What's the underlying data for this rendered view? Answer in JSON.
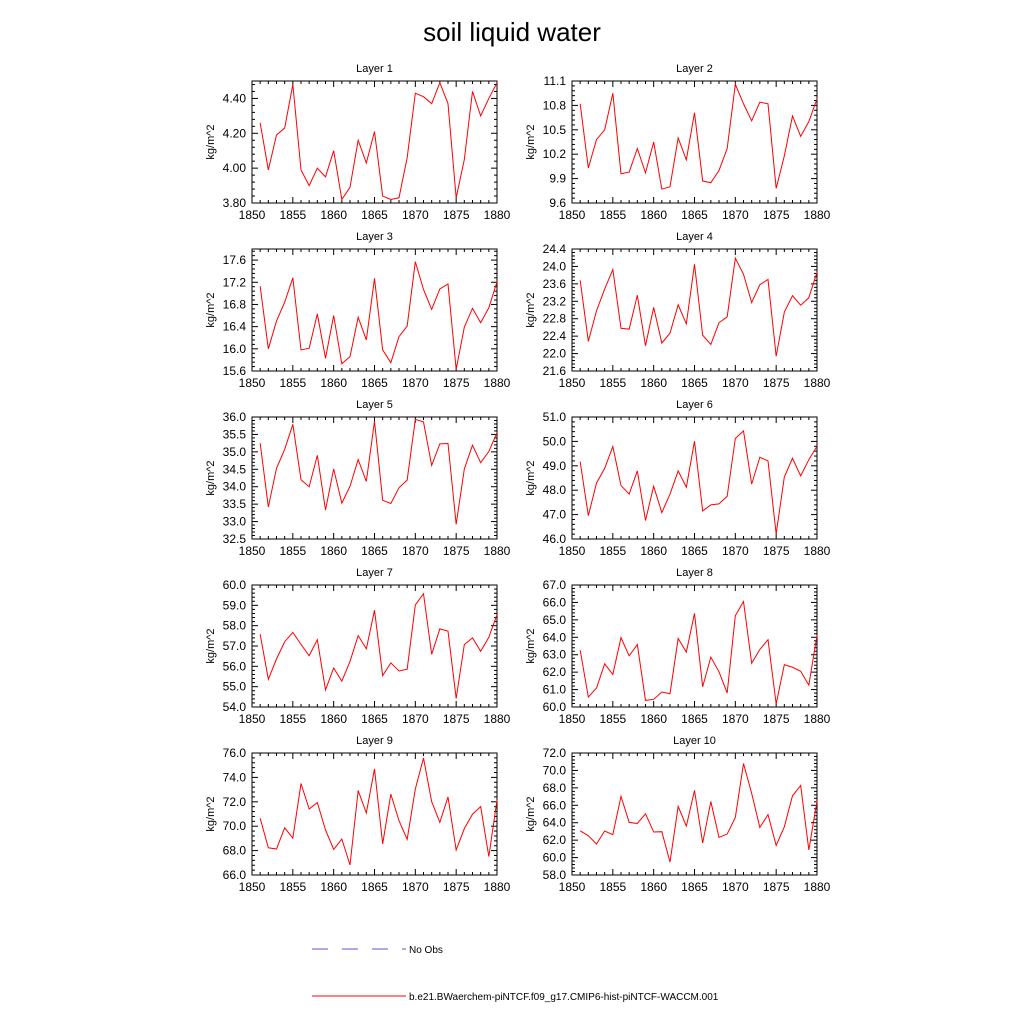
{
  "figure": {
    "title": "soil liquid water"
  },
  "legend": {
    "obs_label": "No Obs",
    "model_label": "b.e21.BWaerchem-piNTCF.f09_g17.CMIP6-hist-piNTCF-WACCM.001",
    "obs_color": "#5a5ad0",
    "model_color": "#ff0000"
  },
  "chart_data": [
    {
      "type": "line",
      "title": "Layer 1",
      "ylabel": "kg/m^2",
      "xlabel": "",
      "xlim": [
        1850,
        1880
      ],
      "ylim": [
        3.8,
        4.5
      ],
      "xticks": [
        "1850",
        "1855",
        "1860",
        "1865",
        "1870",
        "1875",
        "1880"
      ],
      "yticks": [
        "3.80",
        "4.00",
        "4.20",
        "4.40"
      ],
      "series": [
        {
          "color": "#ff0000",
          "x": [
            1851,
            1852,
            1853,
            1854,
            1855,
            1856,
            1857,
            1858,
            1859,
            1860,
            1861,
            1862,
            1863,
            1864,
            1865,
            1866,
            1867,
            1868,
            1869,
            1870,
            1871,
            1872,
            1873,
            1874,
            1875,
            1876,
            1877,
            1878,
            1879,
            1880
          ],
          "y": [
            4.26,
            3.99,
            4.19,
            4.23,
            4.48,
            3.99,
            3.9,
            4.0,
            3.95,
            4.1,
            3.82,
            3.89,
            4.16,
            4.03,
            4.21,
            3.84,
            3.82,
            3.83,
            4.06,
            4.43,
            4.41,
            4.37,
            4.49,
            4.37,
            3.83,
            4.05,
            4.44,
            4.3,
            4.4,
            4.49
          ]
        }
      ]
    },
    {
      "type": "line",
      "title": "Layer 2",
      "ylabel": "kg/m^2",
      "xlabel": "",
      "xlim": [
        1850,
        1880
      ],
      "ylim": [
        9.6,
        11.1
      ],
      "xticks": [
        "1850",
        "1855",
        "1860",
        "1865",
        "1870",
        "1875",
        "1880"
      ],
      "yticks": [
        "9.6",
        "9.9",
        "10.2",
        "10.5",
        "10.8",
        "11.1"
      ],
      "series": [
        {
          "color": "#ff0000",
          "x": [
            1851,
            1852,
            1853,
            1854,
            1855,
            1856,
            1857,
            1858,
            1859,
            1860,
            1861,
            1862,
            1863,
            1864,
            1865,
            1866,
            1867,
            1868,
            1869,
            1870,
            1871,
            1872,
            1873,
            1874,
            1875,
            1876,
            1877,
            1878,
            1879,
            1880
          ],
          "y": [
            10.82,
            10.03,
            10.38,
            10.5,
            10.95,
            9.96,
            9.98,
            10.27,
            9.97,
            10.35,
            9.77,
            9.8,
            10.4,
            10.13,
            10.71,
            9.87,
            9.85,
            10.0,
            10.27,
            11.06,
            10.82,
            10.61,
            10.84,
            10.82,
            9.78,
            10.18,
            10.67,
            10.42,
            10.6,
            10.88
          ]
        }
      ]
    },
    {
      "type": "line",
      "title": "Layer 3",
      "ylabel": "kg/m^2",
      "xlabel": "",
      "xlim": [
        1850,
        1880
      ],
      "ylim": [
        15.6,
        17.8
      ],
      "xticks": [
        "1850",
        "1855",
        "1860",
        "1865",
        "1870",
        "1875",
        "1880"
      ],
      "yticks": [
        "15.6",
        "16.0",
        "16.4",
        "16.8",
        "17.2",
        "17.6"
      ],
      "series": [
        {
          "color": "#ff0000",
          "x": [
            1851,
            1852,
            1853,
            1854,
            1855,
            1856,
            1857,
            1858,
            1859,
            1860,
            1861,
            1862,
            1863,
            1864,
            1865,
            1866,
            1867,
            1868,
            1869,
            1870,
            1871,
            1872,
            1873,
            1874,
            1875,
            1876,
            1877,
            1878,
            1879,
            1880
          ],
          "y": [
            17.13,
            16.0,
            16.5,
            16.84,
            17.28,
            15.98,
            16.01,
            16.63,
            15.83,
            16.6,
            15.73,
            15.86,
            16.57,
            16.16,
            17.27,
            15.98,
            15.75,
            16.22,
            16.41,
            17.57,
            17.07,
            16.71,
            17.08,
            17.17,
            15.63,
            16.39,
            16.73,
            16.47,
            16.74,
            17.21
          ]
        }
      ]
    },
    {
      "type": "line",
      "title": "Layer 4",
      "ylabel": "kg/m^2",
      "xlabel": "",
      "xlim": [
        1850,
        1880
      ],
      "ylim": [
        21.6,
        24.4
      ],
      "xticks": [
        "1850",
        "1855",
        "1860",
        "1865",
        "1870",
        "1875",
        "1880"
      ],
      "yticks": [
        "21.6",
        "22.0",
        "22.4",
        "22.8",
        "23.2",
        "23.6",
        "24.0",
        "24.4"
      ],
      "series": [
        {
          "color": "#ff0000",
          "x": [
            1851,
            1852,
            1853,
            1854,
            1855,
            1856,
            1857,
            1858,
            1859,
            1860,
            1861,
            1862,
            1863,
            1864,
            1865,
            1866,
            1867,
            1868,
            1869,
            1870,
            1871,
            1872,
            1873,
            1874,
            1875,
            1876,
            1877,
            1878,
            1879,
            1880
          ],
          "y": [
            23.68,
            22.28,
            22.98,
            23.48,
            23.93,
            22.58,
            22.56,
            23.34,
            22.18,
            23.06,
            22.24,
            22.47,
            23.12,
            22.68,
            24.05,
            22.42,
            22.21,
            22.71,
            22.84,
            24.19,
            23.82,
            23.17,
            23.58,
            23.7,
            21.94,
            22.95,
            23.33,
            23.11,
            23.28,
            23.87
          ]
        }
      ]
    },
    {
      "type": "line",
      "title": "Layer 5",
      "ylabel": "kg/m^2",
      "xlabel": "",
      "xlim": [
        1850,
        1880
      ],
      "ylim": [
        32.5,
        36.0
      ],
      "xticks": [
        "1850",
        "1855",
        "1860",
        "1865",
        "1870",
        "1875",
        "1880"
      ],
      "yticks": [
        "32.5",
        "33.0",
        "33.5",
        "34.0",
        "34.5",
        "35.0",
        "35.5",
        "36.0"
      ],
      "series": [
        {
          "color": "#ff0000",
          "x": [
            1851,
            1852,
            1853,
            1854,
            1855,
            1856,
            1857,
            1858,
            1859,
            1860,
            1861,
            1862,
            1863,
            1864,
            1865,
            1866,
            1867,
            1868,
            1869,
            1870,
            1871,
            1872,
            1873,
            1874,
            1875,
            1876,
            1877,
            1878,
            1879,
            1880
          ],
          "y": [
            35.25,
            33.42,
            34.53,
            35.07,
            35.79,
            34.2,
            34.0,
            34.9,
            33.33,
            34.51,
            33.53,
            34.01,
            34.78,
            34.15,
            35.88,
            33.61,
            33.52,
            33.97,
            34.19,
            35.93,
            35.86,
            34.61,
            35.23,
            35.24,
            32.92,
            34.51,
            35.19,
            34.69,
            35.01,
            35.55
          ]
        }
      ]
    },
    {
      "type": "line",
      "title": "Layer 6",
      "ylabel": "kg/m^2",
      "xlabel": "",
      "xlim": [
        1850,
        1880
      ],
      "ylim": [
        46.0,
        51.0
      ],
      "xticks": [
        "1850",
        "1855",
        "1860",
        "1865",
        "1870",
        "1875",
        "1880"
      ],
      "yticks": [
        "46.0",
        "47.0",
        "48.0",
        "49.0",
        "50.0",
        "51.0"
      ],
      "series": [
        {
          "color": "#ff0000",
          "x": [
            1851,
            1852,
            1853,
            1854,
            1855,
            1856,
            1857,
            1858,
            1859,
            1860,
            1861,
            1862,
            1863,
            1864,
            1865,
            1866,
            1867,
            1868,
            1869,
            1870,
            1871,
            1872,
            1873,
            1874,
            1875,
            1876,
            1877,
            1878,
            1879,
            1880
          ],
          "y": [
            49.17,
            46.96,
            48.29,
            48.9,
            49.79,
            48.19,
            47.84,
            48.79,
            46.76,
            48.16,
            47.08,
            47.84,
            48.79,
            48.12,
            50.01,
            47.15,
            47.4,
            47.44,
            47.75,
            50.12,
            50.43,
            48.25,
            49.35,
            49.2,
            46.21,
            48.54,
            49.31,
            48.59,
            49.25,
            49.8
          ]
        }
      ]
    },
    {
      "type": "line",
      "title": "Layer 7",
      "ylabel": "kg/m^2",
      "xlabel": "",
      "xlim": [
        1850,
        1880
      ],
      "ylim": [
        54.0,
        60.0
      ],
      "xticks": [
        "1850",
        "1855",
        "1860",
        "1865",
        "1870",
        "1875",
        "1880"
      ],
      "yticks": [
        "54.0",
        "55.0",
        "56.0",
        "57.0",
        "58.0",
        "59.0",
        "60.0"
      ],
      "series": [
        {
          "color": "#ff0000",
          "x": [
            1851,
            1852,
            1853,
            1854,
            1855,
            1856,
            1857,
            1858,
            1859,
            1860,
            1861,
            1862,
            1863,
            1864,
            1865,
            1866,
            1867,
            1868,
            1869,
            1870,
            1871,
            1872,
            1873,
            1874,
            1875,
            1876,
            1877,
            1878,
            1879,
            1880
          ],
          "y": [
            57.58,
            55.36,
            56.36,
            57.21,
            57.67,
            57.08,
            56.52,
            57.31,
            54.84,
            55.92,
            55.27,
            56.24,
            57.51,
            56.86,
            58.76,
            55.54,
            56.17,
            55.77,
            55.86,
            59.02,
            59.57,
            56.59,
            57.84,
            57.73,
            54.42,
            57.07,
            57.4,
            56.74,
            57.43,
            58.54
          ]
        }
      ]
    },
    {
      "type": "line",
      "title": "Layer 8",
      "ylabel": "kg/m^2",
      "xlabel": "",
      "xlim": [
        1850,
        1880
      ],
      "ylim": [
        60.0,
        67.0
      ],
      "xticks": [
        "1850",
        "1855",
        "1860",
        "1865",
        "1870",
        "1875",
        "1880"
      ],
      "yticks": [
        "60.0",
        "61.0",
        "62.0",
        "63.0",
        "64.0",
        "65.0",
        "66.0",
        "67.0"
      ],
      "series": [
        {
          "color": "#ff0000",
          "x": [
            1851,
            1852,
            1853,
            1854,
            1855,
            1856,
            1857,
            1858,
            1859,
            1860,
            1861,
            1862,
            1863,
            1864,
            1865,
            1866,
            1867,
            1868,
            1869,
            1870,
            1871,
            1872,
            1873,
            1874,
            1875,
            1876,
            1877,
            1878,
            1879,
            1880
          ],
          "y": [
            63.26,
            60.57,
            61.09,
            62.48,
            61.87,
            63.98,
            62.93,
            63.59,
            60.38,
            60.44,
            60.86,
            60.76,
            63.93,
            63.15,
            65.37,
            61.16,
            62.86,
            62.02,
            60.8,
            65.24,
            66.05,
            62.51,
            63.3,
            63.86,
            60.18,
            62.43,
            62.28,
            62.05,
            61.25,
            64.12
          ]
        }
      ]
    },
    {
      "type": "line",
      "title": "Layer 9",
      "ylabel": "kg/m^2",
      "xlabel": "",
      "xlim": [
        1850,
        1880
      ],
      "ylim": [
        66.0,
        76.0
      ],
      "xticks": [
        "1850",
        "1855",
        "1860",
        "1865",
        "1870",
        "1875",
        "1880"
      ],
      "yticks": [
        "66.0",
        "68.0",
        "70.0",
        "72.0",
        "74.0",
        "76.0"
      ],
      "series": [
        {
          "color": "#ff0000",
          "x": [
            1851,
            1852,
            1853,
            1854,
            1855,
            1856,
            1857,
            1858,
            1859,
            1860,
            1861,
            1862,
            1863,
            1864,
            1865,
            1866,
            1867,
            1868,
            1869,
            1870,
            1871,
            1872,
            1873,
            1874,
            1875,
            1876,
            1877,
            1878,
            1879,
            1880
          ],
          "y": [
            70.65,
            68.23,
            68.13,
            69.87,
            69.02,
            73.5,
            71.41,
            71.94,
            69.69,
            68.1,
            68.95,
            66.82,
            72.92,
            71.08,
            74.7,
            68.55,
            72.63,
            70.45,
            68.92,
            73.05,
            75.59,
            72.02,
            70.31,
            72.4,
            68.04,
            69.8,
            70.98,
            71.6,
            67.51,
            72.14
          ]
        }
      ]
    },
    {
      "type": "line",
      "title": "Layer 10",
      "ylabel": "kg/m^2",
      "xlabel": "",
      "xlim": [
        1850,
        1880
      ],
      "ylim": [
        58.0,
        72.0
      ],
      "xticks": [
        "1850",
        "1855",
        "1860",
        "1865",
        "1870",
        "1875",
        "1880"
      ],
      "yticks": [
        "58.0",
        "60.0",
        "62.0",
        "64.0",
        "66.0",
        "68.0",
        "70.0",
        "72.0"
      ],
      "series": [
        {
          "color": "#ff0000",
          "x": [
            1851,
            1852,
            1853,
            1854,
            1855,
            1856,
            1857,
            1858,
            1859,
            1860,
            1861,
            1862,
            1863,
            1864,
            1865,
            1866,
            1867,
            1868,
            1869,
            1870,
            1871,
            1872,
            1873,
            1874,
            1875,
            1876,
            1877,
            1878,
            1879,
            1880
          ],
          "y": [
            63.07,
            62.5,
            61.56,
            63.05,
            62.63,
            67.03,
            64.04,
            63.91,
            65.02,
            62.93,
            62.97,
            59.48,
            65.87,
            63.61,
            67.7,
            61.68,
            66.43,
            62.31,
            62.7,
            64.6,
            70.79,
            67.36,
            63.46,
            64.93,
            61.39,
            63.53,
            67.09,
            68.27,
            60.87,
            66.49
          ]
        }
      ]
    }
  ]
}
